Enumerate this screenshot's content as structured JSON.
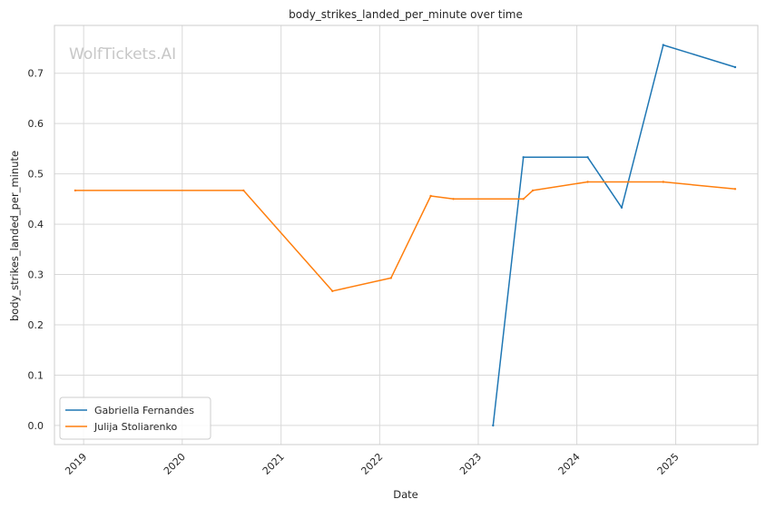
{
  "chart_data": {
    "type": "line",
    "title": "body_strikes_landed_per_minute over time",
    "xlabel": "Date",
    "ylabel": "body_strikes_landed_per_minute",
    "watermark": "WolfTickets.AI",
    "x_ticks": [
      "2019",
      "2020",
      "2021",
      "2022",
      "2023",
      "2024",
      "2025"
    ],
    "y_ticks": [
      "0.0",
      "0.1",
      "0.2",
      "0.3",
      "0.4",
      "0.5",
      "0.6",
      "0.7"
    ],
    "xlim": [
      "2018-09-15",
      "2025-11-01"
    ],
    "ylim": [
      -0.038,
      0.795
    ],
    "grid": true,
    "legend_position": "lower-left",
    "series": [
      {
        "name": "Gabriella Fernandes",
        "color": "#1f77b4",
        "points": [
          [
            "2023-02-25",
            0.0
          ],
          [
            "2023-06-17",
            0.533
          ],
          [
            "2024-02-10",
            0.533
          ],
          [
            "2024-06-15",
            0.433
          ],
          [
            "2024-11-16",
            0.756
          ],
          [
            "2025-08-09",
            0.712
          ]
        ]
      },
      {
        "name": "Julija Stoliarenko",
        "color": "#ff7f0e",
        "points": [
          [
            "2018-12-01",
            0.467
          ],
          [
            "2020-08-15",
            0.467
          ],
          [
            "2021-07-10",
            0.267
          ],
          [
            "2022-02-12",
            0.293
          ],
          [
            "2022-07-09",
            0.456
          ],
          [
            "2022-10-01",
            0.45
          ],
          [
            "2023-06-17",
            0.45
          ],
          [
            "2023-07-22",
            0.467
          ],
          [
            "2024-02-10",
            0.484
          ],
          [
            "2024-11-16",
            0.484
          ],
          [
            "2025-08-09",
            0.47
          ]
        ]
      }
    ]
  }
}
